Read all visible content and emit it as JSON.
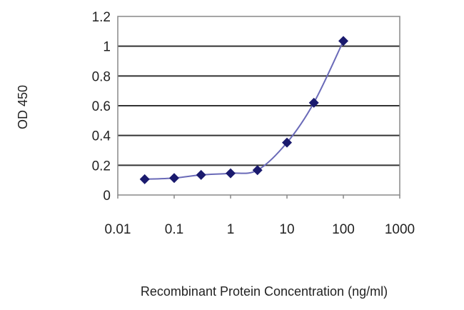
{
  "chart_data": {
    "type": "line",
    "title": "",
    "xlabel": "Recombinant Protein Concentration (ng/ml)",
    "ylabel": "OD 450",
    "xscale": "log",
    "xlim": [
      0.01,
      1000
    ],
    "ylim": [
      0,
      1.2
    ],
    "xticks": [
      "0.01",
      "0.1",
      "1",
      "10",
      "100",
      "1000"
    ],
    "yticks": [
      "0",
      "0.2",
      "0.4",
      "0.6",
      "0.8",
      "1",
      "1.2"
    ],
    "grid": "horizontal",
    "legend": "none",
    "marker": "diamond",
    "series": [
      {
        "color": "#1a1a6e",
        "line_color": "#6a6ab8",
        "x": [
          0.03,
          0.1,
          0.3,
          1,
          3,
          10,
          30,
          100
        ],
        "y": [
          0.106,
          0.114,
          0.135,
          0.146,
          0.167,
          0.352,
          0.62,
          1.035
        ]
      }
    ]
  }
}
